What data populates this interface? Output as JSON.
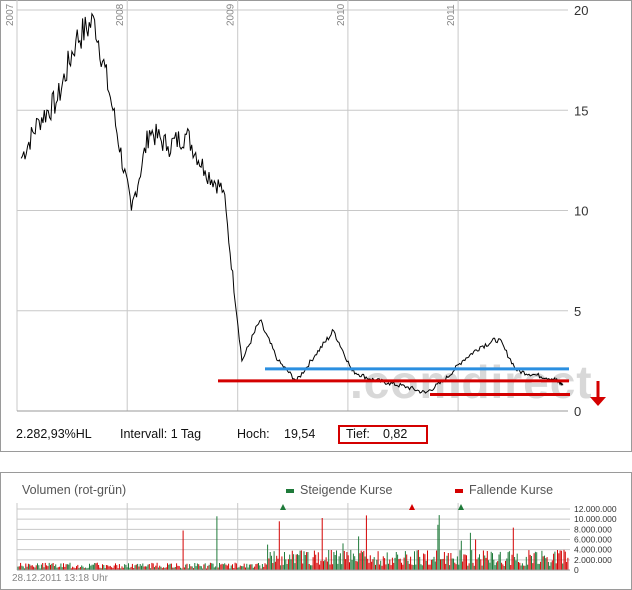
{
  "chart_data": [
    {
      "type": "line",
      "title": "",
      "x_axis": {
        "tick_labels": [
          "2007",
          "2008",
          "2009",
          "2010",
          "2011"
        ]
      },
      "y_axis": {
        "position": "right",
        "ylim": [
          0,
          20
        ],
        "tick_labels": [
          "0",
          "5",
          "10",
          "15",
          "20"
        ]
      },
      "grid": true,
      "series": [
        {
          "x": [
            "2007-01",
            "2007-03",
            "2007-05",
            "2007-07",
            "2007-09",
            "2007-11",
            "2008-01",
            "2008-03",
            "2008-05",
            "2008-07",
            "2008-09",
            "2008-11",
            "2009-01",
            "2009-03",
            "2009-05",
            "2009-07",
            "2009-09",
            "2009-11",
            "2010-01",
            "2010-03",
            "2010-05",
            "2010-07",
            "2010-09",
            "2010-11",
            "2011-01",
            "2011-03",
            "2011-05",
            "2011-07",
            "2011-09",
            "2011-11",
            "2011-12"
          ],
          "y": [
            12.6,
            14.5,
            15.5,
            18.5,
            19.5,
            15.0,
            10.0,
            14.0,
            13.2,
            13.8,
            12.0,
            11.0,
            2.5,
            4.5,
            2.5,
            1.5,
            2.8,
            4.0,
            2.0,
            1.6,
            1.4,
            1.2,
            0.9,
            1.5,
            2.5,
            3.2,
            3.6,
            2.0,
            1.8,
            1.6,
            1.3
          ]
        }
      ],
      "annotations": {
        "support_line_blue": 2.1,
        "support_line_red": 1.5,
        "low_line_red": 0.82,
        "down_arrow": true
      },
      "watermark": "comdirect"
    },
    {
      "type": "bar",
      "title": "Volumen (rot-grün)",
      "y_axis": {
        "position": "right",
        "tick_labels": [
          "12.000.000",
          "10.000.000",
          "8.000.000",
          "6.000.000",
          "4.000.000",
          "2.000.000",
          "0"
        ]
      },
      "legend": [
        {
          "name": "Steigende Kurse",
          "color": "#1f7a3a"
        },
        {
          "name": "Fallende Kurse",
          "color": "#d40000"
        }
      ],
      "grid": true
    }
  ],
  "stats": {
    "change": "2.282,93%HL",
    "interval": "Intervall: 1 Tag",
    "high_label": "Hoch:",
    "high_value": "19,54",
    "low_label": "Tief:",
    "low_value": "0,82"
  },
  "timestamp": "28.12.2011 13:18 Uhr",
  "colors": {
    "price_line": "#000000",
    "blue_line": "#2b8fe0",
    "red_line": "#d40000",
    "grid": "#c8c8c8",
    "up": "#1f7a3a",
    "down": "#d40000"
  }
}
